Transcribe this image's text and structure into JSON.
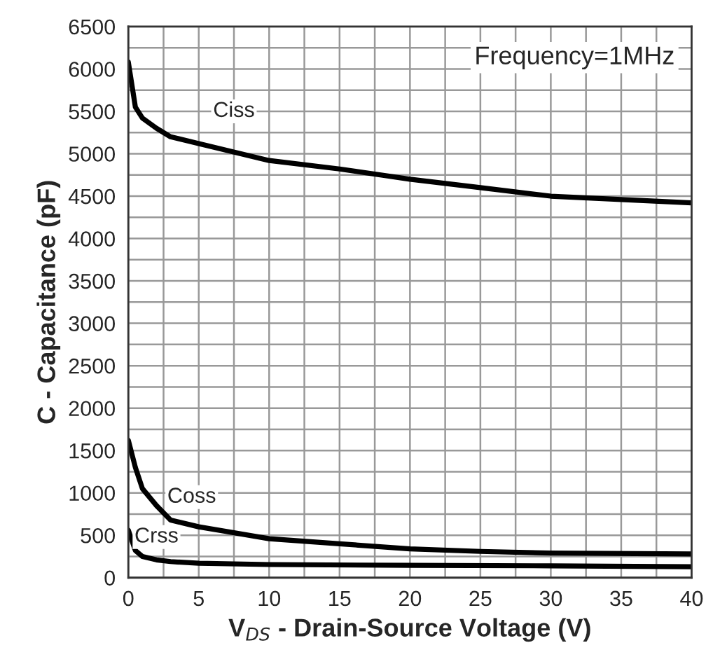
{
  "chart_data": {
    "type": "line",
    "xlabel": "V$_{DS}$ - Drain-Source Voltage (V)",
    "ylabel": "C - Capacitance (pF)",
    "xlim": [
      0,
      40
    ],
    "xticks": [
      0,
      5,
      10,
      15,
      20,
      25,
      30,
      35,
      40
    ],
    "ylim": [
      0,
      6500
    ],
    "yticks": [
      0,
      500,
      1000,
      1500,
      2000,
      2500,
      3000,
      3500,
      4000,
      4500,
      5000,
      5500,
      6000,
      6500
    ],
    "grid": true,
    "legend": false,
    "marker": "none",
    "line_style": "solid",
    "series": [
      {
        "color": "#000000",
        "x": [
          0,
          0.5,
          1,
          2,
          3,
          5,
          10,
          15,
          20,
          25,
          30,
          35,
          40
        ],
        "values": [
          6080,
          5550,
          5420,
          5300,
          5200,
          5120,
          4920,
          4820,
          4700,
          4600,
          4500,
          4460,
          4420
        ]
      },
      {
        "color": "#000000",
        "x": [
          0,
          0.5,
          1,
          2,
          3,
          5,
          10,
          15,
          20,
          25,
          30,
          40
        ],
        "values": [
          1620,
          1300,
          1050,
          850,
          680,
          600,
          460,
          400,
          340,
          310,
          290,
          280
        ]
      },
      {
        "color": "#000000",
        "x": [
          0,
          0.5,
          1,
          2,
          3,
          5,
          10,
          20,
          30,
          40
        ],
        "values": [
          560,
          320,
          250,
          210,
          190,
          170,
          155,
          145,
          140,
          130
        ]
      }
    ],
    "annotations": [
      "Frequency=1MHz",
      {
        "text": "Ciss",
        "x": 7.5,
        "y": 5500
      },
      {
        "text": "Coss",
        "x": 4.5,
        "y": 950
      },
      {
        "text": "Crss",
        "x": 2,
        "y": 480
      }
    ]
  }
}
